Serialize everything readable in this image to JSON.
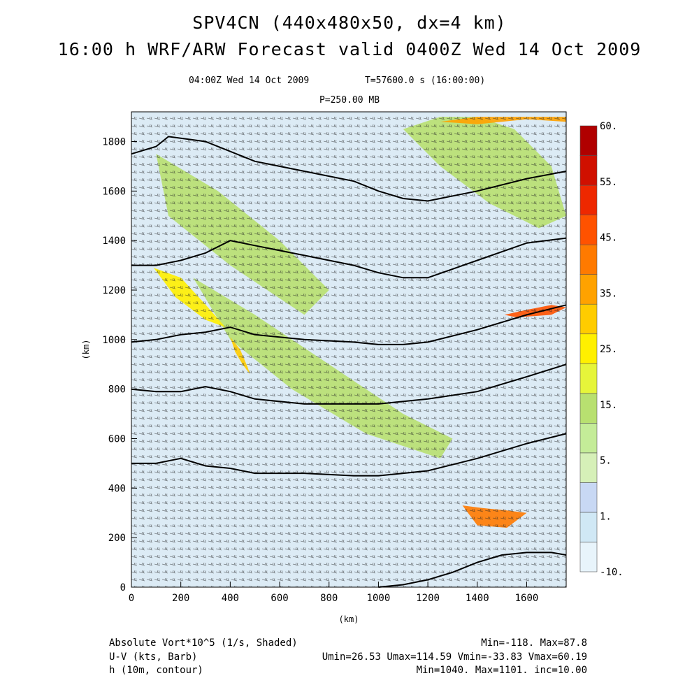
{
  "title": "SPV4CN (440x480x50, dx=4 km)",
  "subtitle": "16:00 h WRF/ARW Forecast valid 0400Z Wed 14 Oct 2009",
  "valid_time": "04:00Z Wed 14 Oct 2009",
  "sim_time": "T=57600.0 s (16:00:00)",
  "level": "P=250.00 MB",
  "chart_data": {
    "type": "heatmap",
    "xlabel": "(km)",
    "ylabel": "(km)",
    "xlim": [
      0,
      1760
    ],
    "ylim": [
      0,
      1920
    ],
    "x_ticks": [
      0,
      200,
      400,
      600,
      800,
      1000,
      1200,
      1400,
      1600
    ],
    "y_ticks": [
      0,
      200,
      400,
      600,
      800,
      1000,
      1200,
      1400,
      1600,
      1800
    ],
    "colorbar": {
      "labels": [
        "60.",
        "55.",
        "45.",
        "35.",
        "25.",
        "15.",
        "5.",
        "1.",
        "-10."
      ],
      "levels": [
        -10,
        0,
        1,
        2,
        5,
        10,
        15,
        20,
        25,
        30,
        35,
        40,
        45,
        50,
        55,
        60
      ],
      "colors": [
        "#e8f4fb",
        "#d0e8f5",
        "#c8d8f4",
        "#d6f0b8",
        "#c4ec98",
        "#b8e070",
        "#e6f53a",
        "#fff000",
        "#ffcc00",
        "#ffa200",
        "#ff7a00",
        "#ff5200",
        "#ee2800",
        "#d01000",
        "#b00000"
      ]
    },
    "contour_variable": "h (10m)",
    "contour_interval": 10,
    "contours": [
      {
        "x": [
          0,
          100,
          150,
          300,
          500,
          700,
          900,
          1000,
          1100,
          1200,
          1400,
          1600,
          1760
        ],
        "y": [
          1750,
          1780,
          1820,
          1800,
          1720,
          1680,
          1640,
          1600,
          1570,
          1560,
          1600,
          1650,
          1680
        ]
      },
      {
        "x": [
          0,
          100,
          200,
          300,
          400,
          500,
          700,
          900,
          1000,
          1100,
          1200,
          1400,
          1600,
          1760
        ],
        "y": [
          1300,
          1300,
          1320,
          1350,
          1400,
          1380,
          1340,
          1300,
          1270,
          1250,
          1250,
          1320,
          1390,
          1410
        ]
      },
      {
        "x": [
          0,
          100,
          200,
          300,
          400,
          500,
          700,
          900,
          1000,
          1100,
          1200,
          1400,
          1600,
          1760
        ],
        "y": [
          990,
          1000,
          1020,
          1030,
          1050,
          1020,
          1000,
          990,
          980,
          980,
          990,
          1040,
          1100,
          1140
        ]
      },
      {
        "x": [
          0,
          100,
          200,
          300,
          400,
          500,
          700,
          900,
          1000,
          1200,
          1400,
          1600,
          1760
        ],
        "y": [
          800,
          790,
          790,
          810,
          790,
          760,
          740,
          740,
          740,
          760,
          790,
          850,
          900
        ]
      },
      {
        "x": [
          0,
          100,
          200,
          300,
          400,
          500,
          700,
          900,
          1000,
          1100,
          1200,
          1400,
          1600,
          1760
        ],
        "y": [
          500,
          500,
          520,
          490,
          480,
          460,
          460,
          450,
          450,
          460,
          470,
          520,
          580,
          620
        ]
      },
      {
        "x": [
          1000,
          1100,
          1200,
          1300,
          1400,
          1500,
          1600,
          1700,
          1760
        ],
        "y": [
          0,
          10,
          30,
          60,
          100,
          130,
          140,
          140,
          130
        ]
      }
    ],
    "shaded_regions": [
      {
        "name": "northwest-band",
        "value": 12,
        "x": [
          100,
          350,
          600,
          800,
          700,
          400,
          150
        ],
        "y": [
          1750,
          1600,
          1400,
          1200,
          1100,
          1300,
          1500
        ]
      },
      {
        "name": "central-band",
        "value": 10,
        "x": [
          250,
          500,
          800,
          1100,
          1300,
          1250,
          950,
          650,
          400
        ],
        "y": [
          1250,
          1100,
          900,
          700,
          600,
          520,
          620,
          800,
          1000
        ]
      },
      {
        "name": "northeast-band",
        "value": 12,
        "x": [
          1100,
          1250,
          1400,
          1550,
          1700,
          1760,
          1650,
          1450,
          1250
        ],
        "y": [
          1850,
          1900,
          1900,
          1850,
          1700,
          1500,
          1450,
          1550,
          1700
        ]
      },
      {
        "name": "jet-core-west",
        "value": 22,
        "x": [
          90,
          200,
          310,
          380,
          300,
          180
        ],
        "y": [
          1290,
          1250,
          1130,
          1050,
          1080,
          1170
        ]
      },
      {
        "name": "jet-core-diag",
        "value": 27,
        "x": [
          400,
          440,
          470,
          480,
          450,
          420
        ],
        "y": [
          1010,
          960,
          890,
          860,
          900,
          950
        ]
      },
      {
        "name": "east-spot",
        "value": 40,
        "x": [
          1510,
          1600,
          1700,
          1760,
          1700,
          1560
        ],
        "y": [
          1100,
          1120,
          1140,
          1130,
          1100,
          1090
        ]
      },
      {
        "name": "north-edge",
        "value": 32,
        "x": [
          1250,
          1400,
          1600,
          1760,
          1760,
          1600,
          1400
        ],
        "y": [
          1880,
          1900,
          1900,
          1900,
          1880,
          1890,
          1870
        ]
      },
      {
        "name": "se-cells",
        "value": 35,
        "x": [
          1340,
          1420,
          1520,
          1600,
          1520,
          1400
        ],
        "y": [
          330,
          320,
          310,
          300,
          240,
          250
        ]
      }
    ],
    "barb_field": "U-V (kts, Barb)",
    "shade_field": "Absolute Vort*10^5 (1/s, Shaded)",
    "shade_min": -118.0,
    "shade_max": 87.8,
    "umin": 26.53,
    "umax": 114.59,
    "vmin": -33.83,
    "vmax": 60.19,
    "h_min": 1040,
    "h_max": 1101
  },
  "footer": {
    "line1_left": "Absolute Vort*10^5 (1/s, Shaded)",
    "line1_right": "Min=-118. Max=87.8",
    "line2_left": "U-V (kts, Barb)",
    "line2_right": "Umin=26.53 Umax=114.59 Vmin=-33.83 Vmax=60.19",
    "line3_left": "h (10m, contour)",
    "line3_right": "Min=1040. Max=1101. inc=10.00"
  }
}
